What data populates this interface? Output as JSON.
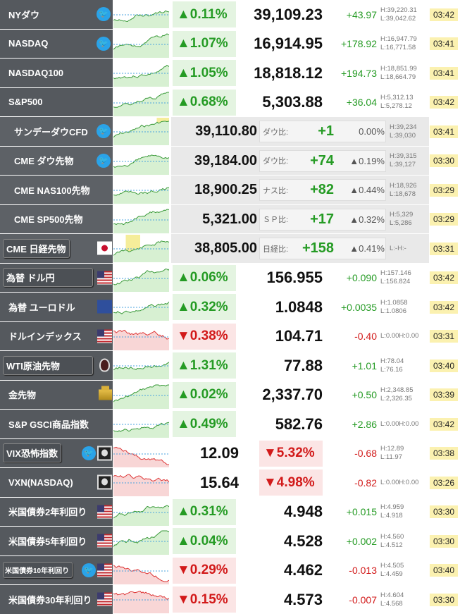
{
  "colors": {
    "up": "#259b24",
    "down": "#d21a1a",
    "label_bg": "#55595e",
    "time_bg": "#fbf1b0"
  },
  "main_rows": [
    {
      "name": "NYダウ",
      "pct": "▲0.11%",
      "dir": "up",
      "price": "39,109.23",
      "change": "+43.97",
      "high": "H:39,220.31",
      "low": "L:39,042.62",
      "time": "03:42",
      "icon": "twitter-icon"
    },
    {
      "name": "NASDAQ",
      "pct": "▲1.07%",
      "dir": "up",
      "price": "16,914.95",
      "change": "+178.92",
      "high": "H:16,947.79",
      "low": "L:16,771.58",
      "time": "03:41",
      "icon": "twitter-icon"
    },
    {
      "name": "NASDAQ100",
      "pct": "▲1.05%",
      "dir": "up",
      "price": "18,818.12",
      "change": "+194.73",
      "high": "H:18,851.99",
      "low": "L:18,664.79",
      "time": "03:41",
      "icon": ""
    },
    {
      "name": "S&P500",
      "pct": "▲0.68%",
      "dir": "up",
      "price": "5,303.88",
      "change": "+36.04",
      "high": "H:5,312.13",
      "low": "L:5,278.12",
      "time": "03:42",
      "icon": ""
    }
  ],
  "cfd_rows": [
    {
      "name": "サンデーダウCFD",
      "price": "39,110.80",
      "ref": "ダウ比:",
      "diff": "+1",
      "pct": "0.00%",
      "high": "H:39,234",
      "low": "L:39,030",
      "time": "03:41",
      "icon": "twitter-icon"
    },
    {
      "name": "CME ダウ先物",
      "price": "39,184.00",
      "ref": "ダウ比:",
      "diff": "+74",
      "pct": "▲0.19%",
      "high": "H:39,315",
      "low": "L:39,127",
      "time": "03:30",
      "icon": "twitter-icon"
    },
    {
      "name": "CME NAS100先物",
      "price": "18,900.25",
      "ref": "ナス比:",
      "diff": "+82",
      "pct": "▲0.44%",
      "high": "H:18,926",
      "low": "L:18,678",
      "time": "03:29",
      "icon": ""
    },
    {
      "name": "CME SP500先物",
      "price": "5,321.00",
      "ref": "ＳＰ比:",
      "diff": "+17",
      "pct": "▲0.32%",
      "high": "H:5,329",
      "low": "L:5,286",
      "time": "03:29",
      "icon": ""
    },
    {
      "name": "CME 日経先物",
      "price": "38,805.00",
      "ref": "日経比:",
      "diff": "+158",
      "pct": "▲0.41%",
      "high": "L:-H:-",
      "low": "",
      "time": "03:31",
      "icon": "japan-flag-icon"
    }
  ],
  "rows2": [
    {
      "name": "為替 ドル円",
      "pct": "▲0.06%",
      "dir": "up",
      "price": "156.955",
      "change": "+0.090",
      "high": "H:157.146",
      "low": "L:156.824",
      "time": "03:42",
      "icon": "us-flag-icon",
      "btn": true
    },
    {
      "name": "為替 ユーロドル",
      "pct": "▲0.32%",
      "dir": "up",
      "price": "1.0848",
      "change": "+0.0035",
      "high": "H:1.0858",
      "low": "L:1.0806",
      "time": "03:42",
      "icon": "eu-flag-icon",
      "btn": false
    },
    {
      "name": "ドルインデックス",
      "pct": "▼0.38%",
      "dir": "dn",
      "price": "104.71",
      "change": "-0.40",
      "high": "L:0.00H:0.00",
      "low": "",
      "time": "03:31",
      "icon": "us-flag-icon",
      "btn": false
    },
    {
      "name": "WTI原油先物",
      "pct": "▲1.31%",
      "dir": "up",
      "price": "77.88",
      "change": "+1.01",
      "high": "H:78.04",
      "low": "L:76.16",
      "time": "03:40",
      "icon": "oil-drop-icon",
      "btn": true
    },
    {
      "name": "金先物",
      "pct": "▲0.02%",
      "dir": "up",
      "price": "2,337.70",
      "change": "+0.50",
      "high": "H:2,348.85",
      "low": "L:2,326.35",
      "time": "03:39",
      "icon": "gold-bar-icon",
      "btn": false
    },
    {
      "name": "S&P GSCI商品指数",
      "pct": "▲0.49%",
      "dir": "up",
      "price": "582.76",
      "change": "+2.86",
      "high": "L:0.00H:0.00",
      "low": "",
      "time": "03:42",
      "icon": "",
      "btn": false
    }
  ],
  "vix_rows": [
    {
      "name": "VIX恐怖指数",
      "price": "12.09",
      "pct": "▼5.32%",
      "change": "-0.68",
      "high": "H:12.89",
      "low": "L:11.97",
      "time": "03:38",
      "btn": true
    },
    {
      "name": "VXN(NASDAQ)",
      "price": "15.64",
      "pct": "▼4.98%",
      "change": "-0.82",
      "high": "L:0.00H:0.00",
      "low": "",
      "time": "03:26",
      "btn": false
    }
  ],
  "bond_rows": [
    {
      "name": "米国債券2年利回り",
      "pct": "▲0.31%",
      "dir": "up",
      "price": "4.948",
      "change": "+0.015",
      "high": "H:4.959",
      "low": "L:4.918",
      "time": "03:30",
      "btn": false
    },
    {
      "name": "米国債券5年利回り",
      "pct": "▲0.04%",
      "dir": "up",
      "price": "4.528",
      "change": "+0.002",
      "high": "H:4.560",
      "low": "L:4.512",
      "time": "03:30",
      "btn": false
    },
    {
      "name": "米国債券10年利回り",
      "pct": "▼0.29%",
      "dir": "dn",
      "price": "4.462",
      "change": "-0.013",
      "high": "H:4.505",
      "low": "L:4.459",
      "time": "03:40",
      "btn": true
    },
    {
      "name": "米国債券30年利回り",
      "pct": "▼0.15%",
      "dir": "dn",
      "price": "4.573",
      "change": "-0.007",
      "high": "H:4.604",
      "low": "L:4.568",
      "time": "03:30",
      "btn": false
    }
  ]
}
